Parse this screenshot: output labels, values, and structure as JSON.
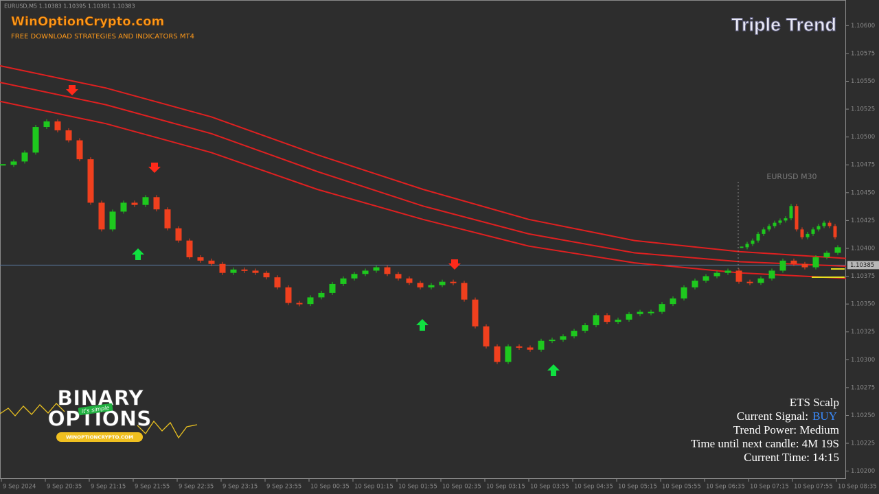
{
  "header": {
    "symbol_line": "EURUSD,M5 1.10383 1.10395 1.10381 1.10383",
    "site": "WinOptionCrypto.com",
    "tagline": "FREE DOWNLOAD STRATEGIES AND INDICATORS MT4",
    "title": "Triple Trend"
  },
  "info_panel": {
    "name": "ETS Scalp",
    "signal_label": "Current Signal:",
    "signal": "BUY",
    "trend_power": "Trend Power: Medium",
    "next_candle": "Time until next candle: 4M 19S",
    "current_time": "Current Time: 14:15"
  },
  "logo": {
    "line1": "BINARY",
    "line2": "OPTIONS",
    "tag": "it's simple",
    "url": "WINOPTIONCRYPTO.COM"
  },
  "chart_data": {
    "type": "candlestick",
    "up_color": "#1ec81e",
    "down_color": "#f0401e",
    "closes": [
      1.10475,
      1.10478,
      1.10486,
      1.10509,
      1.10514,
      1.10506,
      1.10497,
      1.1048,
      1.10441,
      1.10417,
      1.10433,
      1.10441,
      1.10439,
      1.10446,
      1.10435,
      1.10418,
      1.10407,
      1.10392,
      1.10389,
      1.10386,
      1.10378,
      1.10381,
      1.1038,
      1.10378,
      1.10374,
      1.10365,
      1.10351,
      1.1035,
      1.10356,
      1.1036,
      1.10368,
      1.10373,
      1.10377,
      1.1038,
      1.10383,
      1.10377,
      1.10373,
      1.10369,
      1.10365,
      1.10367,
      1.1037,
      1.10369,
      1.10354,
      1.1033,
      1.10312,
      1.10298,
      1.10312,
      1.10311,
      1.10309,
      1.10317,
      1.10318,
      1.10321,
      1.10326,
      1.10331,
      1.1034,
      1.10334,
      1.10336,
      1.10341,
      1.10343,
      1.10343,
      1.1035,
      1.10355,
      1.10365,
      1.10371,
      1.10375,
      1.10378,
      1.1038,
      1.1037,
      1.10369,
      1.10373,
      1.1038,
      1.10389,
      1.10386,
      1.10383,
      1.10392,
      1.10396,
      1.10401
    ],
    "inset_label": "EURUSD M30",
    "inset_closes": [
      1.10401,
      1.10404,
      1.10407,
      1.10413,
      1.10417,
      1.1042,
      1.10423,
      1.10425,
      1.10427,
      1.10438,
      1.10417,
      1.1041,
      1.10413,
      1.10417,
      1.1042,
      1.10423,
      1.1042,
      1.1041
    ],
    "moving_averages": [
      {
        "color": "#e02020",
        "values": [
          1.10564,
          1.10544,
          1.10518,
          1.10484,
          1.10453,
          1.10426,
          1.10407,
          1.10397,
          1.10391
        ]
      },
      {
        "color": "#e02020",
        "values": [
          1.10549,
          1.10529,
          1.10503,
          1.10469,
          1.10438,
          1.10413,
          1.10396,
          1.10388,
          1.10384
        ]
      },
      {
        "color": "#e02020",
        "values": [
          1.10532,
          1.10512,
          1.10486,
          1.10453,
          1.10426,
          1.10402,
          1.10387,
          1.10378,
          1.10373
        ]
      }
    ],
    "current_price": {
      "value": 1.10385,
      "label": "1.10385"
    },
    "ylim": [
      1.10193,
      1.10623
    ],
    "yticks": [
      {
        "value": 1.106,
        "label": "1.10600"
      },
      {
        "value": 1.10575,
        "label": "1.10575"
      },
      {
        "value": 1.1055,
        "label": "1.10550"
      },
      {
        "value": 1.10525,
        "label": "1.10525"
      },
      {
        "value": 1.105,
        "label": "1.10500"
      },
      {
        "value": 1.10475,
        "label": "1.10475"
      },
      {
        "value": 1.1045,
        "label": "1.10450"
      },
      {
        "value": 1.10425,
        "label": "1.10425"
      },
      {
        "value": 1.104,
        "label": "1.10400"
      },
      {
        "value": 1.10375,
        "label": "1.10375"
      },
      {
        "value": 1.1035,
        "label": "1.10350"
      },
      {
        "value": 1.10325,
        "label": "1.10325"
      },
      {
        "value": 1.103,
        "label": "1.10300"
      },
      {
        "value": 1.10275,
        "label": "1.10275"
      },
      {
        "value": 1.1025,
        "label": "1.10250"
      },
      {
        "value": 1.10225,
        "label": "1.10225"
      },
      {
        "value": 1.102,
        "label": "1.10200"
      }
    ],
    "x_labels": [
      "9 Sep 2024",
      "9 Sep 20:35",
      "9 Sep 21:15",
      "9 Sep 21:55",
      "9 Sep 22:35",
      "9 Sep 23:15",
      "9 Sep 23:55",
      "10 Sep 00:35",
      "10 Sep 01:15",
      "10 Sep 01:55",
      "10 Sep 02:35",
      "10 Sep 03:15",
      "10 Sep 03:55",
      "10 Sep 04:35",
      "10 Sep 05:15",
      "10 Sep 05:55",
      "10 Sep 06:35",
      "10 Sep 07:15",
      "10 Sep 07:55",
      "10 Sep 08:35"
    ]
  }
}
